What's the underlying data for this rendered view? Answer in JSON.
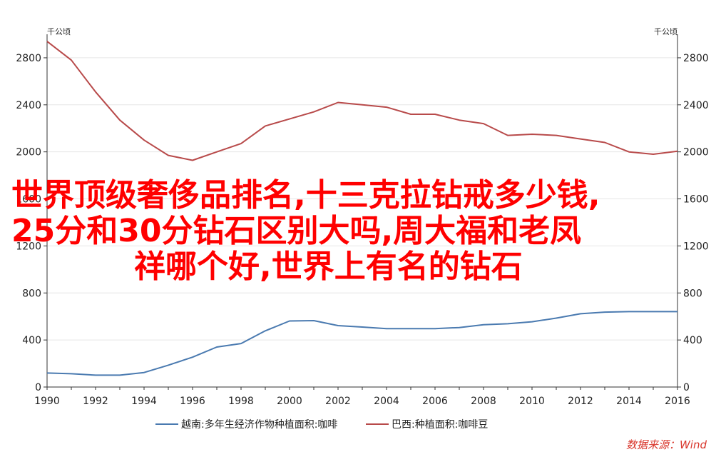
{
  "chart_data": {
    "type": "line",
    "unit_left": "千公顷",
    "unit_right": "千公顷",
    "x": [
      1990,
      1991,
      1992,
      1993,
      1994,
      1995,
      1996,
      1997,
      1998,
      1999,
      2000,
      2001,
      2002,
      2003,
      2004,
      2005,
      2006,
      2007,
      2008,
      2009,
      2010,
      2011,
      2012,
      2013,
      2014,
      2015,
      2016
    ],
    "xlim": [
      1990,
      2016
    ],
    "x_ticks": [
      "1990",
      "1992",
      "1994",
      "1996",
      "1998",
      "2000",
      "2002",
      "2004",
      "2006",
      "2008",
      "2010",
      "2012",
      "2014",
      "2016"
    ],
    "ylim": [
      0,
      3000
    ],
    "y_ticks": [
      "0",
      "400",
      "800",
      "1200",
      "1600",
      "2000",
      "2400",
      "2800"
    ],
    "grid": true,
    "legend_position": "bottom",
    "series": [
      {
        "name": "越南:多年生经济作物种植面积:咖啡",
        "color": "#4a7ab0",
        "values": [
          119,
          113,
          101,
          101,
          123,
          186,
          254,
          340,
          370,
          478,
          562,
          565,
          522,
          510,
          497,
          497,
          497,
          506,
          530,
          538,
          555,
          586,
          623,
          637,
          641,
          641,
          641
        ]
      },
      {
        "name": "巴西:种植面积:咖啡豆",
        "color": "#b84a4a",
        "values": [
          2940,
          2780,
          2510,
          2270,
          2100,
          1970,
          1928,
          2000,
          2070,
          2220,
          2280,
          2340,
          2420,
          2400,
          2380,
          2320,
          2320,
          2270,
          2240,
          2140,
          2150,
          2140,
          2110,
          2080,
          2000,
          1980,
          2005
        ]
      }
    ]
  },
  "overlay_text": {
    "line1": "世界顶级奢侈品排名,十三克拉钻戒多少钱,",
    "line2": "25分和30分钻石区别大吗,周大福和老凤",
    "line3": "祥哪个好,世界上有名的钻石"
  },
  "source": "数据来源：Wind"
}
